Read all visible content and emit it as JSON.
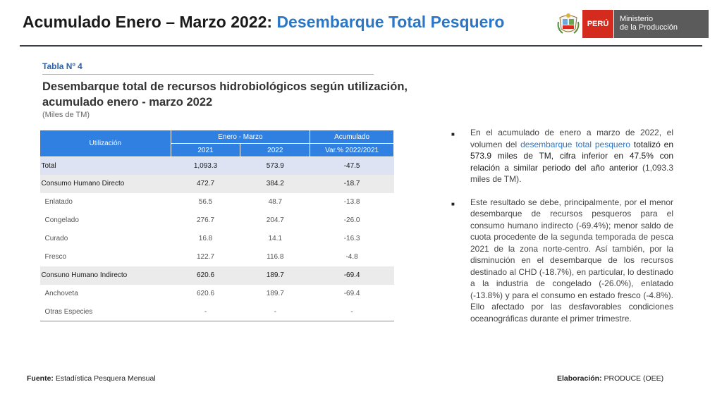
{
  "header": {
    "title_main": "Acumulado Enero – Marzo 2022:",
    "title_accent": "Desembarque Total Pesquero"
  },
  "logo": {
    "country": "PERÚ",
    "ministry_line1": "Ministerio",
    "ministry_line2": "de la Producción"
  },
  "table_section": {
    "number": "Tabla Nº 4",
    "title_line1": "Desembarque total de recursos hidrobiológicos según utilización,",
    "title_line2": "acumulado enero - marzo 2022",
    "units": "(Miles de TM)"
  },
  "table": {
    "header_utilizacion": "Utilización",
    "header_period": "Enero -  Marzo",
    "header_acumulado": "Acumulado",
    "col_2021": "2021",
    "col_2022": "2022",
    "col_var": "Var.% 2022/2021",
    "rows": [
      {
        "label": "Total",
        "v2021": "1,093.3",
        "v2022": "573.9",
        "var": "-47.5"
      },
      {
        "label": "Consumo Humano Directo",
        "v2021": "472.7",
        "v2022": "384.2",
        "var": "-18.7"
      },
      {
        "label": "Enlatado",
        "v2021": "56.5",
        "v2022": "48.7",
        "var": "-13.8"
      },
      {
        "label": "Congelado",
        "v2021": "276.7",
        "v2022": "204.7",
        "var": "-26.0"
      },
      {
        "label": "Curado",
        "v2021": "16.8",
        "v2022": "14.1",
        "var": "-16.3"
      },
      {
        "label": "Fresco",
        "v2021": "122.7",
        "v2022": "116.8",
        "var": "-4.8"
      },
      {
        "label": "Consuno Humano Indirecto",
        "v2021": "620.6",
        "v2022": "189.7",
        "var": "-69.4"
      },
      {
        "label": "Anchoveta",
        "v2021": "620.6",
        "v2022": "189.7",
        "var": "-69.4"
      },
      {
        "label": "Otras Especies",
        "v2021": "-",
        "v2022": "-",
        "var": "-"
      }
    ]
  },
  "bullets": {
    "b1_part1": "En el acumulado de enero a marzo de 2022, el volumen del ",
    "b1_part2": "desembarque total pesquero",
    "b1_part3": " totalizó en 573.9 miles de TM, cifra inferior en 47.5% con relación a similar periodo del año anterior",
    "b1_part4": " (1,093.3 miles de TM).",
    "b2": "Este resultado se debe, principalmente, por el menor desembarque de recursos pesqueros para el consumo humano indirecto (-69.4%); menor saldo de cuota procedente de la segunda temporada de pesca 2021 de la zona norte-centro. Así también, por la disminución en el desembarque de los recursos destinado al CHD (-18.7%), en particular, lo destinado a la industria de congelado (-26.0%), enlatado (-13.8%) y para el consumo en estado fresco (-4.8%). Ello afectado por las desfavorables condiciones oceanográficas durante el primer trimestre."
  },
  "footer": {
    "source_label": "Fuente:",
    "source_value": " Estadística Pesquera Mensual",
    "elab_label": "Elaboración:",
    "elab_value": " PRODUCE (OEE)"
  },
  "colors": {
    "accent_blue": "#2a77c9",
    "header_blue": "#2f80e0",
    "peru_red": "#d52b1e",
    "ministry_gray": "#5b5b5b"
  }
}
